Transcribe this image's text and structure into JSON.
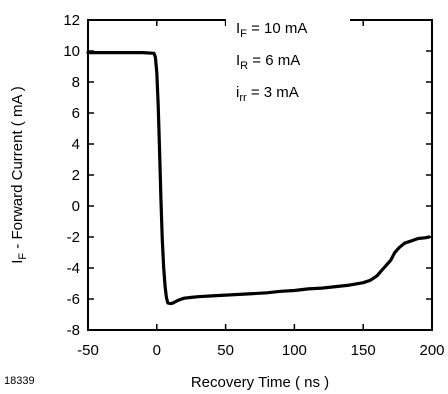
{
  "chart_data": {
    "type": "line",
    "xlabel": "Recovery Time ( ns )",
    "ylabel": "I F - Forward Current ( mA )",
    "ylabel_parts": {
      "main": "I",
      "sub": "F",
      "rest": " - Forward Current ( mA )"
    },
    "xlim": [
      -50,
      200
    ],
    "ylim": [
      -8,
      12
    ],
    "x_ticks": [
      -50,
      0,
      50,
      100,
      150,
      200
    ],
    "y_ticks": [
      -8,
      -6,
      -4,
      -2,
      0,
      2,
      4,
      6,
      8,
      10,
      12
    ],
    "grid": false,
    "figure_id": "18339",
    "annotations": [
      {
        "main": "I",
        "sub": "F",
        "rest": " = 10 mA"
      },
      {
        "main": "I",
        "sub": "R",
        "rest": " = 6 mA"
      },
      {
        "main": "i",
        "sub": "rr",
        "rest": " = 3 mA"
      }
    ],
    "series": [
      {
        "x": [
          -50,
          -10,
          -2,
          -1,
          0,
          1,
          2,
          3,
          4,
          5,
          6,
          7,
          8,
          10,
          12,
          15,
          18,
          20,
          25,
          30,
          40,
          50,
          60,
          70,
          80,
          90,
          100,
          110,
          120,
          130,
          140,
          150,
          155,
          160,
          165,
          170,
          173,
          176,
          180,
          185,
          190,
          195,
          198
        ],
        "y": [
          9.9,
          9.9,
          9.85,
          9.6,
          8.6,
          6.5,
          3.5,
          0.5,
          -2.2,
          -4.0,
          -5.2,
          -5.9,
          -6.25,
          -6.3,
          -6.25,
          -6.1,
          -6.0,
          -5.95,
          -5.9,
          -5.85,
          -5.8,
          -5.75,
          -5.7,
          -5.65,
          -5.6,
          -5.5,
          -5.45,
          -5.35,
          -5.3,
          -5.2,
          -5.1,
          -4.95,
          -4.8,
          -4.5,
          -4.0,
          -3.5,
          -3.0,
          -2.7,
          -2.4,
          -2.25,
          -2.1,
          -2.05,
          -2.0
        ]
      }
    ]
  }
}
